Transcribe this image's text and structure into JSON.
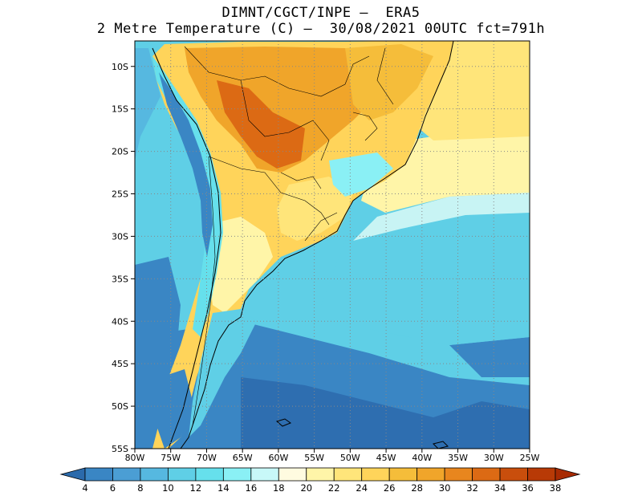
{
  "title": {
    "line1": "DIMNT/CGCT/INPE –  ERA5",
    "line2": "2 Metre Temperature (C) –  30/08/2021 00UTC fct=791h"
  },
  "map": {
    "lat_labels": [
      "10S",
      "15S",
      "20S",
      "25S",
      "30S",
      "35S",
      "40S",
      "45S",
      "50S",
      "55S"
    ],
    "lon_labels": [
      "80W",
      "75W",
      "70W",
      "65W",
      "60W",
      "55W",
      "50W",
      "45W",
      "40W",
      "35W",
      "30W",
      "25W"
    ],
    "lat_values": [
      -10,
      -15,
      -20,
      -25,
      -30,
      -35,
      -40,
      -45,
      -50,
      -55
    ],
    "lon_values": [
      -80,
      -75,
      -70,
      -65,
      -60,
      -55,
      -50,
      -45,
      -40,
      -35,
      -30,
      -25
    ],
    "lat_range": [
      -55,
      -7
    ],
    "lon_range": [
      -80,
      -25
    ]
  },
  "colorbar": {
    "labels": [
      "4",
      "6",
      "8",
      "10",
      "12",
      "14",
      "16",
      "18",
      "20",
      "22",
      "24",
      "26",
      "28",
      "30",
      "32",
      "34",
      "36",
      "38"
    ],
    "colors": [
      "#2b6aab",
      "#3a86c4",
      "#4b9ed4",
      "#56b8e0",
      "#5fcfe6",
      "#66e0ec",
      "#8af0f5",
      "#c8f8f8",
      "#fffbe0",
      "#fff5a8",
      "#ffe57a",
      "#ffd45a",
      "#f5bd3a",
      "#f0a52a",
      "#e8861e",
      "#dc6a14",
      "#c94e0c",
      "#b83a06",
      "#a82a02"
    ]
  },
  "colors": {
    "ocean_deep": "#2e6eb0",
    "ocean_mid": "#3a8cc8",
    "ocean_light": "#5cc8e2",
    "cyan": "#68dcec",
    "pale": "#c8f4f4",
    "land_warm": "#ffd860",
    "land_hot": "#f0a030",
    "land_very_hot": "#d8661a"
  }
}
